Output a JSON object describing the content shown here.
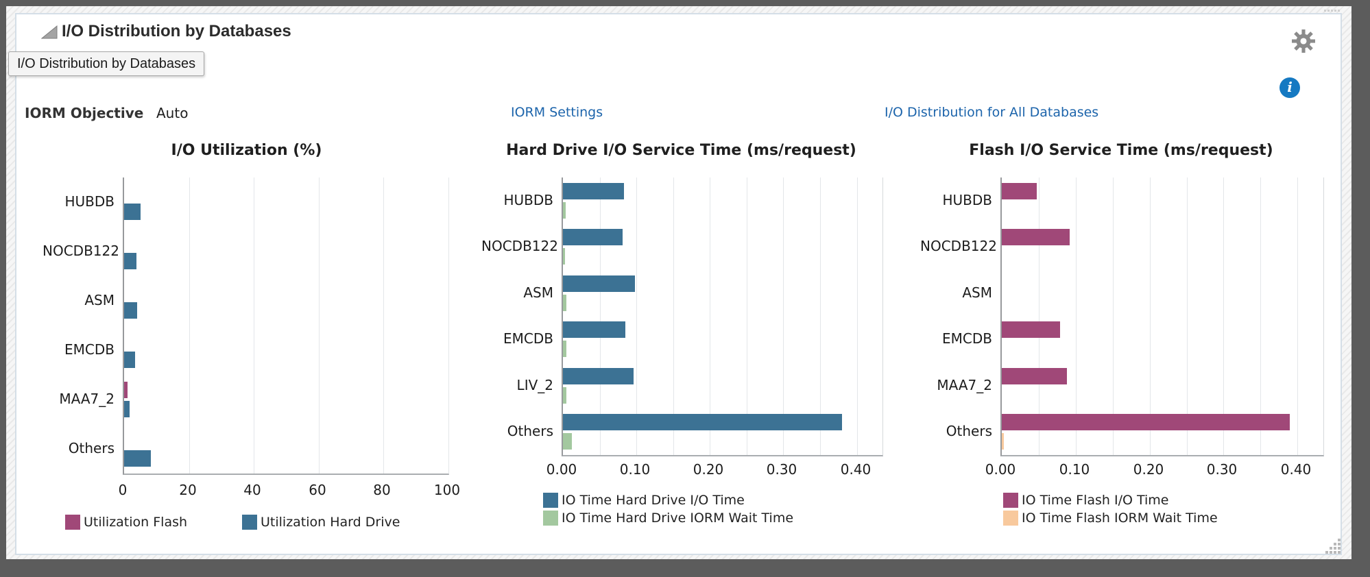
{
  "header": {
    "title": "I/O Distribution by Databases",
    "tooltip": "I/O Distribution by Databases"
  },
  "controls": {
    "iorm_objective_label": "IORM Objective",
    "iorm_objective_value": "Auto",
    "links": [
      {
        "label": "IORM Settings"
      },
      {
        "label": "I/O Distribution for All Databases"
      }
    ]
  },
  "icons": {
    "collapse": "collapse-triangle-icon",
    "gear": "gear-icon",
    "info": "info-icon",
    "resize": "resize-grip-icon",
    "drag": "drag-handle-dots-icon"
  },
  "colors": {
    "bar_blue": "#3c7294",
    "bar_magenta": "#a04878",
    "bar_green": "#a3c89f",
    "bar_peach": "#f8c99d",
    "link_blue": "#1c64ab",
    "info_blue": "#1579c2",
    "gear_gray": "#8b8b8b"
  },
  "chart_data": [
    {
      "type": "bar",
      "orientation": "horizontal",
      "title": "I/O Utilization (%)",
      "categories": [
        "HUBDB",
        "NOCDB122",
        "ASM",
        "EMCDB",
        "MAA7_2",
        "Others"
      ],
      "series": [
        {
          "name": "Utilization Flash",
          "color": "#a04878",
          "values": [
            0,
            0,
            0,
            0,
            1,
            0
          ]
        },
        {
          "name": "Utilization Hard Drive",
          "color": "#3c7294",
          "values": [
            5,
            3.7,
            4,
            3.3,
            1.6,
            8.3
          ]
        }
      ],
      "xlim": [
        0,
        100
      ],
      "xticks": [
        0,
        20,
        40,
        60,
        80,
        100
      ],
      "xtick_labels": [
        "0",
        "20",
        "40",
        "60",
        "80",
        "100"
      ],
      "gridline_step": 20,
      "grid": true,
      "legend_position": "bottom",
      "legend_layout": "row"
    },
    {
      "type": "bar",
      "orientation": "horizontal",
      "title": "Hard Drive I/O Service Time (ms/request)",
      "categories": [
        "HUBDB",
        "NOCDB122",
        "ASM",
        "EMCDB",
        "LIV_2",
        "Others"
      ],
      "series": [
        {
          "name": "IO Time Hard Drive I/O Time",
          "color": "#3c7294",
          "values": [
            0.083,
            0.081,
            0.098,
            0.085,
            0.096,
            0.38
          ]
        },
        {
          "name": "IO Time Hard Drive IORM Wait Time",
          "color": "#a3c89f",
          "values": [
            0.004,
            0.003,
            0.005,
            0.005,
            0.005,
            0.012
          ]
        }
      ],
      "xlim": [
        0,
        0.435
      ],
      "xticks": [
        0,
        0.1,
        0.2,
        0.3,
        0.4
      ],
      "xtick_labels": [
        "0.00",
        "0.10",
        "0.20",
        "0.30",
        "0.40"
      ],
      "gridline_step": 0.05,
      "grid": true,
      "legend_position": "bottom",
      "legend_layout": "column"
    },
    {
      "type": "bar",
      "orientation": "horizontal",
      "title": "Flash I/O Service Time (ms/request)",
      "categories": [
        "HUBDB",
        "NOCDB122",
        "ASM",
        "EMCDB",
        "MAA7_2",
        "Others"
      ],
      "series": [
        {
          "name": "IO Time Flash I/O Time",
          "color": "#a04878",
          "values": [
            0.047,
            0.092,
            0,
            0.079,
            0.088,
            0.39
          ]
        },
        {
          "name": "IO Time Flash IORM Wait Time",
          "color": "#f8c99d",
          "values": [
            0,
            0,
            0,
            0,
            0,
            0.003
          ]
        }
      ],
      "xlim": [
        0,
        0.435
      ],
      "xticks": [
        0,
        0.1,
        0.2,
        0.3,
        0.4
      ],
      "xtick_labels": [
        "0.00",
        "0.10",
        "0.20",
        "0.30",
        "0.40"
      ],
      "gridline_step": 0.05,
      "grid": true,
      "legend_position": "bottom",
      "legend_layout": "column"
    }
  ]
}
